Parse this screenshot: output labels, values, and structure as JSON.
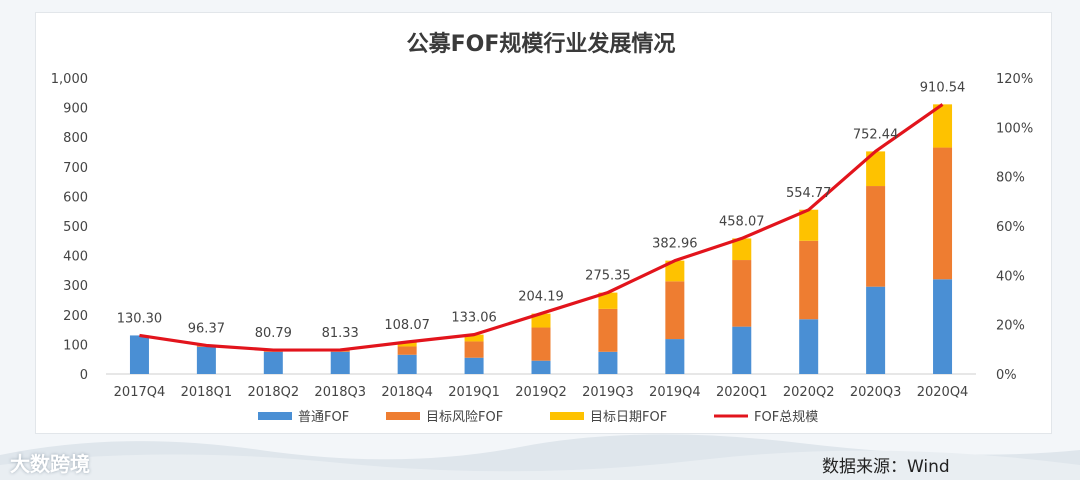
{
  "chart_data": {
    "type": "bar",
    "title": "公募FOF规模行业发展情况",
    "categories": [
      "2017Q4",
      "2018Q1",
      "2018Q2",
      "2018Q3",
      "2018Q4",
      "2019Q1",
      "2019Q2",
      "2019Q3",
      "2019Q4",
      "2020Q1",
      "2020Q2",
      "2020Q3",
      "2020Q4"
    ],
    "series": [
      {
        "name": "普通FOF",
        "kind": "bar",
        "color": "#4a8fd4",
        "values": [
          130.3,
          92,
          75,
          75,
          65,
          55,
          45,
          75,
          118,
          160,
          185,
          295,
          320
        ]
      },
      {
        "name": "目标风险FOF",
        "kind": "bar",
        "color": "#ee7d31",
        "values": [
          0,
          4,
          5,
          6,
          28,
          55,
          112,
          145,
          195,
          225,
          265,
          340,
          445
        ]
      },
      {
        "name": "目标日期FOF",
        "kind": "bar",
        "color": "#fec200",
        "values": [
          0,
          0,
          0,
          0,
          15,
          23,
          47,
          55,
          70,
          73,
          105,
          117,
          146
        ]
      },
      {
        "name": "FOF总规模",
        "kind": "line",
        "color": "#e2141c",
        "values": [
          130.3,
          96.37,
          80.79,
          81.33,
          108.07,
          133.06,
          204.19,
          275.35,
          382.96,
          458.07,
          554.77,
          752.44,
          910.54
        ]
      }
    ],
    "total_labels": [
      "130.30",
      "96.37",
      "80.79",
      "81.33",
      "108.07",
      "133.06",
      "204.19",
      "275.35",
      "382.96",
      "458.07",
      "554.77",
      "752.44",
      "910.54"
    ],
    "ylim": [
      0,
      1000
    ],
    "yticks": [
      "0",
      "100",
      "200",
      "300",
      "400",
      "500",
      "600",
      "700",
      "800",
      "900",
      "1,000"
    ],
    "y2lim": [
      0,
      120
    ],
    "y2ticks": [
      "0%",
      "20%",
      "40%",
      "60%",
      "80%",
      "100%",
      "120%"
    ],
    "legend_position": "bottom",
    "grid": false
  },
  "source_label": "数据来源：Wind",
  "watermark": "大数跨境"
}
